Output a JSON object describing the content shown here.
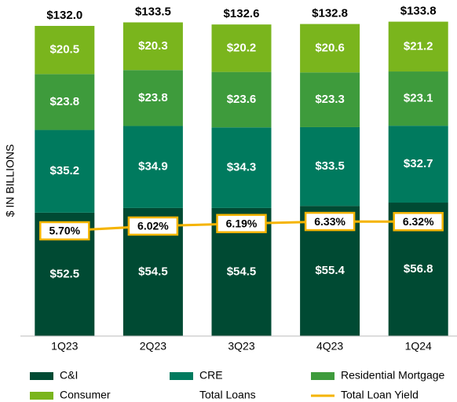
{
  "chart_data": {
    "type": "stacked_bar_line",
    "ylabel": "$ IN BILLIONS",
    "categories": [
      "1Q23",
      "2Q23",
      "3Q23",
      "4Q23",
      "1Q24"
    ],
    "ylim": [
      0,
      135
    ],
    "y2lim": [
      -1.4,
      20
    ],
    "series": [
      {
        "name": "C&I",
        "color": "#004a33",
        "values": [
          52.5,
          54.5,
          54.5,
          55.4,
          56.8
        ],
        "value_labels": [
          "$52.5",
          "$54.5",
          "$54.5",
          "$55.4",
          "$56.8"
        ]
      },
      {
        "name": "CRE",
        "color": "#007a5e",
        "values": [
          35.2,
          34.9,
          34.3,
          33.5,
          32.7
        ],
        "value_labels": [
          "$35.2",
          "$34.9",
          "$34.3",
          "$33.5",
          "$32.7"
        ]
      },
      {
        "name": "Residential Mortgage",
        "color": "#3e9b3c",
        "values": [
          23.8,
          23.8,
          23.6,
          23.3,
          23.1
        ],
        "value_labels": [
          "$23.8",
          "$23.8",
          "$23.6",
          "$23.3",
          "$23.1"
        ]
      },
      {
        "name": "Consumer",
        "color": "#7ab51d",
        "values": [
          20.5,
          20.3,
          20.2,
          20.6,
          21.2
        ],
        "value_labels": [
          "$20.5",
          "$20.3",
          "$20.2",
          "$20.6",
          "$21.2"
        ]
      },
      {
        "name": "Total Loans",
        "type": "total",
        "values": [
          132.0,
          133.5,
          132.6,
          132.8,
          133.8
        ],
        "value_labels": [
          "$132.0",
          "$133.5",
          "$132.6",
          "$132.8",
          "$133.8"
        ]
      },
      {
        "name": "Total Loan Yield",
        "type": "line",
        "axis": "y2",
        "color": "#f5b400",
        "values": [
          5.7,
          6.02,
          6.19,
          6.33,
          6.32
        ],
        "value_labels": [
          "5.70%",
          "6.02%",
          "6.19%",
          "6.33%",
          "6.32%"
        ]
      }
    ]
  }
}
